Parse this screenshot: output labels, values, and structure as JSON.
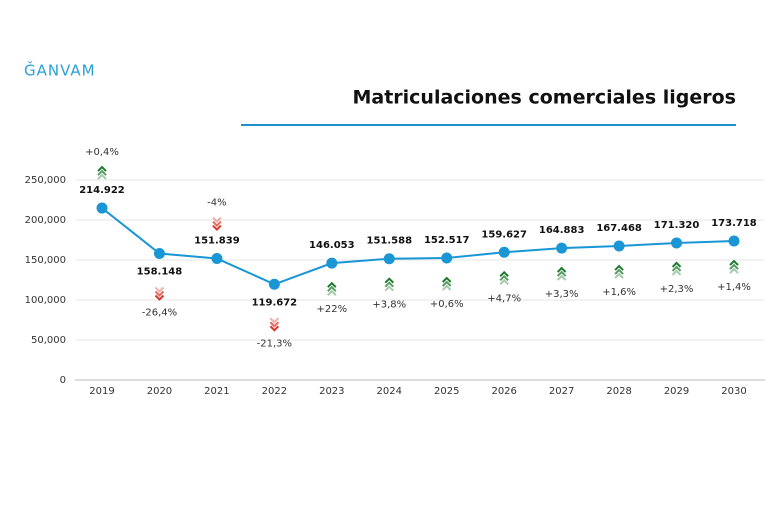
{
  "logo": "ǦANVAM",
  "chart_data": {
    "type": "line",
    "title": "Matriculaciones comerciales ligeros",
    "categories": [
      "2019",
      "2020",
      "2021",
      "2022",
      "2023",
      "2024",
      "2025",
      "2026",
      "2027",
      "2028",
      "2029",
      "2030"
    ],
    "values": [
      214922,
      158148,
      151839,
      119672,
      146053,
      151588,
      152517,
      159627,
      164883,
      167468,
      171320,
      173718
    ],
    "value_labels": [
      "214.922",
      "158.148",
      "151.839",
      "119.672",
      "146.053",
      "151.588",
      "152.517",
      "159.627",
      "164.883",
      "167.468",
      "171.320",
      "173.718"
    ],
    "color": "#1a96d4",
    "changes": {
      "values": [
        0.4,
        -26.4,
        -4,
        -21.3,
        22,
        3.8,
        0.6,
        4.7,
        3.3,
        1.6,
        2.3,
        1.4
      ],
      "value_labels": [
        "+0,4%",
        "-26,4%",
        "-4%",
        "-21,3%",
        "+22%",
        "+3,8%",
        "+0,6%",
        "+4,7%",
        "+3,3%",
        "+1,6%",
        "+2,3%",
        "+1,4%"
      ]
    },
    "ylim": [
      0,
      250000
    ],
    "yticks": [
      0,
      {
        "value": 50000,
        "label": "50,000"
      },
      {
        "value": 100000,
        "label": "100,000"
      },
      {
        "value": 150000,
        "label": "150,000"
      },
      {
        "value": 200000,
        "label": "200,000"
      },
      {
        "value": 250000,
        "label": "250,000"
      }
    ],
    "grid": true
  }
}
